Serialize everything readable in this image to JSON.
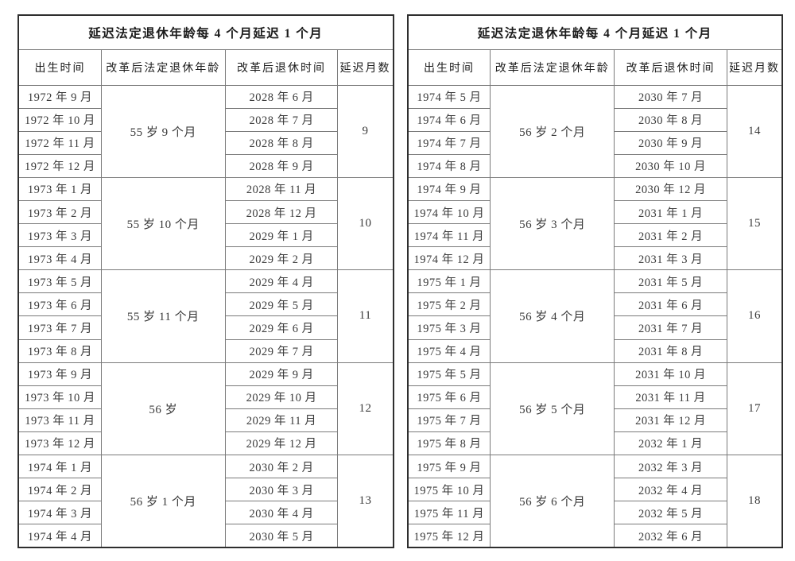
{
  "colors": {
    "border_outer": "#2e2e2e",
    "border_inner": "#7a7a7a",
    "text": "#3a3a3a",
    "header_text": "#1c1c1c",
    "bg": "#ffffff"
  },
  "tables": [
    {
      "title": "延迟法定退休年龄每 4 个月延迟 1 个月",
      "columns": [
        "出生时间",
        "改革后法定退休年龄",
        "改革后退休时间",
        "延迟月数"
      ],
      "groups": [
        {
          "birth_months": [
            "1972 年 9 月",
            "1972 年 10 月",
            "1972 年 11 月",
            "1972 年 12 月"
          ],
          "retirement_age": "55 岁 9 个月",
          "retirement_times": [
            "2028 年 6 月",
            "2028 年 7 月",
            "2028 年 8 月",
            "2028 年 9 月"
          ],
          "delay_months": "9"
        },
        {
          "birth_months": [
            "1973 年 1 月",
            "1973 年 2 月",
            "1973 年 3 月",
            "1973 年 4 月"
          ],
          "retirement_age": "55 岁 10 个月",
          "retirement_times": [
            "2028 年 11 月",
            "2028 年 12 月",
            "2029 年 1 月",
            "2029 年 2 月"
          ],
          "delay_months": "10"
        },
        {
          "birth_months": [
            "1973 年 5 月",
            "1973 年 6 月",
            "1973 年 7 月",
            "1973 年 8 月"
          ],
          "retirement_age": "55 岁 11 个月",
          "retirement_times": [
            "2029 年 4 月",
            "2029 年 5 月",
            "2029 年 6 月",
            "2029 年 7 月"
          ],
          "delay_months": "11"
        },
        {
          "birth_months": [
            "1973 年 9 月",
            "1973 年 10 月",
            "1973 年 11 月",
            "1973 年 12 月"
          ],
          "retirement_age": "56 岁",
          "retirement_times": [
            "2029 年 9 月",
            "2029 年 10 月",
            "2029 年 11 月",
            "2029 年 12 月"
          ],
          "delay_months": "12"
        },
        {
          "birth_months": [
            "1974 年 1 月",
            "1974 年 2 月",
            "1974 年 3 月",
            "1974 年 4 月"
          ],
          "retirement_age": "56 岁 1 个月",
          "retirement_times": [
            "2030 年 2 月",
            "2030 年 3 月",
            "2030 年 4 月",
            "2030 年 5 月"
          ],
          "delay_months": "13"
        }
      ]
    },
    {
      "title": "延迟法定退休年龄每 4 个月延迟 1 个月",
      "columns": [
        "出生时间",
        "改革后法定退休年龄",
        "改革后退休时间",
        "延迟月数"
      ],
      "groups": [
        {
          "birth_months": [
            "1974 年 5 月",
            "1974 年 6 月",
            "1974 年 7 月",
            "1974 年 8 月"
          ],
          "retirement_age": "56 岁 2 个月",
          "retirement_times": [
            "2030 年 7 月",
            "2030 年 8 月",
            "2030 年 9 月",
            "2030 年 10 月"
          ],
          "delay_months": "14"
        },
        {
          "birth_months": [
            "1974 年 9 月",
            "1974 年 10 月",
            "1974 年 11 月",
            "1974 年 12 月"
          ],
          "retirement_age": "56 岁 3 个月",
          "retirement_times": [
            "2030 年 12 月",
            "2031 年 1 月",
            "2031 年 2 月",
            "2031 年 3 月"
          ],
          "delay_months": "15"
        },
        {
          "birth_months": [
            "1975 年 1 月",
            "1975 年 2 月",
            "1975 年 3 月",
            "1975 年 4 月"
          ],
          "retirement_age": "56 岁 4 个月",
          "retirement_times": [
            "2031 年 5 月",
            "2031 年 6 月",
            "2031 年 7 月",
            "2031 年 8 月"
          ],
          "delay_months": "16"
        },
        {
          "birth_months": [
            "1975 年 5 月",
            "1975 年 6 月",
            "1975 年 7 月",
            "1975 年 8 月"
          ],
          "retirement_age": "56 岁 5 个月",
          "retirement_times": [
            "2031 年 10 月",
            "2031 年 11 月",
            "2031 年 12 月",
            "2032 年 1 月"
          ],
          "delay_months": "17"
        },
        {
          "birth_months": [
            "1975 年 9 月",
            "1975 年 10 月",
            "1975 年 11 月",
            "1975 年 12 月"
          ],
          "retirement_age": "56 岁 6 个月",
          "retirement_times": [
            "2032 年 3 月",
            "2032 年 4 月",
            "2032 年 5 月",
            "2032 年 6 月"
          ],
          "delay_months": "18"
        }
      ]
    }
  ]
}
